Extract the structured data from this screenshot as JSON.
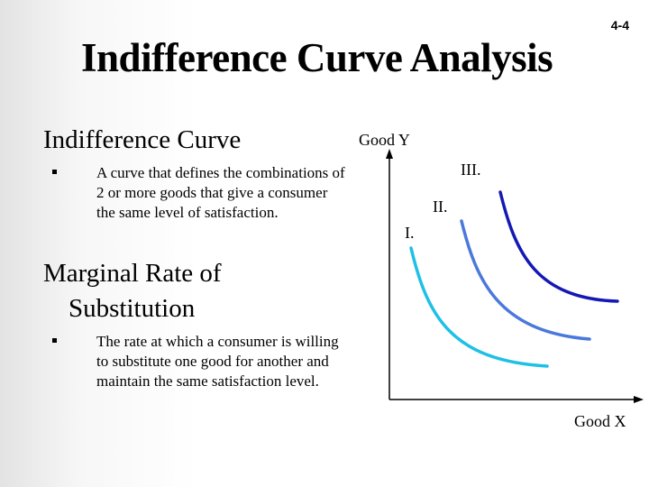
{
  "slide_number": "4-4",
  "title": "Indifference Curve Analysis",
  "sections": [
    {
      "heading": "Indifference Curve",
      "bullet": "A curve that defines the combinations of 2 or more goods that give a consumer the same level of satisfaction."
    },
    {
      "heading_line1": "Marginal Rate of",
      "heading_line2": "Substitution",
      "bullet": "The rate at which a consumer is willing to substitute one good for another and maintain the same satisfaction level."
    }
  ],
  "diagram": {
    "y_axis_label": "Good Y",
    "x_axis_label": "Good X",
    "curves": [
      {
        "label": "I.",
        "color": "#1ec0e6"
      },
      {
        "label": "II.",
        "color": "#4a78dc"
      },
      {
        "label": "III.",
        "color": "#1418b4"
      }
    ]
  }
}
